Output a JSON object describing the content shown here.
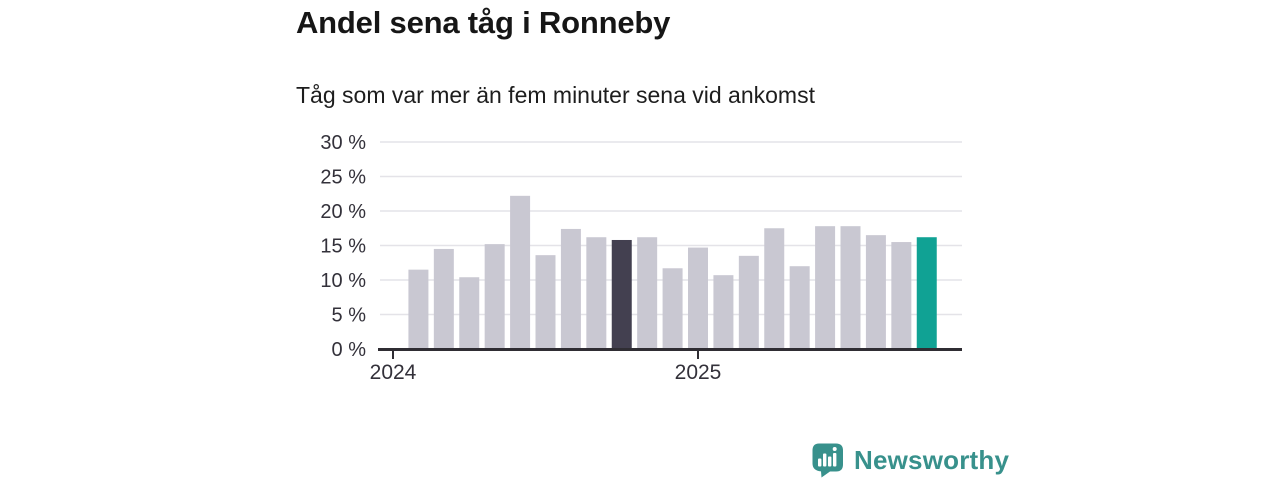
{
  "header": {
    "title": "Andel sena tåg i Ronneby",
    "subtitle": "Tåg som var mer än fem minuter sena vid ankomst"
  },
  "chart_data": {
    "type": "bar",
    "title": "Andel sena tåg i Ronneby",
    "subtitle": "Tåg som var mer än fem minuter sena vid ankomst",
    "x": [
      "2024-02",
      "2024-03",
      "2024-04",
      "2024-05",
      "2024-06",
      "2024-07",
      "2024-08",
      "2024-09",
      "2024-10",
      "2024-11",
      "2024-12",
      "2025-01",
      "2025-02",
      "2025-03",
      "2025-04",
      "2025-05",
      "2025-06",
      "2025-07",
      "2025-08",
      "2025-09",
      "2025-10"
    ],
    "values": [
      11.5,
      14.5,
      10.4,
      15.2,
      22.2,
      13.6,
      17.4,
      16.2,
      15.8,
      16.2,
      11.7,
      14.7,
      10.7,
      13.5,
      17.5,
      12.0,
      17.8,
      17.8,
      16.5,
      15.5,
      16.2
    ],
    "unit": "%",
    "ylim": [
      0,
      30
    ],
    "yticks": [
      0,
      5,
      10,
      15,
      20,
      25,
      30
    ],
    "ytick_suffix": " %",
    "xtick_labels": [
      "2024",
      "2025"
    ],
    "xtick_positions": [
      "2024-01",
      "2025-01"
    ],
    "grid": true,
    "legend": "none",
    "highlight_indexes": {
      "prev_year_month": 8,
      "latest_month": 20
    },
    "colors": {
      "bar_default": "#c9c8d2",
      "bar_prev_year_highlight": "#434050",
      "bar_latest_highlight": "#10a294",
      "axis_line": "#2f2d33",
      "gridline": "#e4e3e8",
      "tick_label": "#33313a"
    }
  },
  "footer": {
    "brand": "Newsworthy",
    "brand_color": "#38918c"
  }
}
